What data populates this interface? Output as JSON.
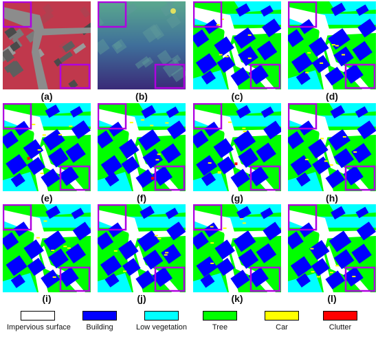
{
  "panels": [
    {
      "label": "(a)",
      "kind": "ortho"
    },
    {
      "label": "(b)",
      "kind": "dsm"
    },
    {
      "label": "(c)",
      "kind": "seg",
      "variant": 0
    },
    {
      "label": "(d)",
      "kind": "seg",
      "variant": 1
    },
    {
      "label": "(e)",
      "kind": "seg",
      "variant": 2
    },
    {
      "label": "(f)",
      "kind": "seg",
      "variant": 3
    },
    {
      "label": "(g)",
      "kind": "seg",
      "variant": 4
    },
    {
      "label": "(h)",
      "kind": "seg",
      "variant": 5
    },
    {
      "label": "(i)",
      "kind": "seg",
      "variant": 6
    },
    {
      "label": "(j)",
      "kind": "seg",
      "variant": 7
    },
    {
      "label": "(k)",
      "kind": "seg",
      "variant": 8
    },
    {
      "label": "(l)",
      "kind": "seg",
      "variant": 9
    }
  ],
  "legend": [
    {
      "label": "Impervious surface",
      "color": "#ffffff"
    },
    {
      "label": "Building",
      "color": "#0000ff"
    },
    {
      "label": "Low vegetation",
      "color": "#00ffff"
    },
    {
      "label": "Tree",
      "color": "#00ff00"
    },
    {
      "label": "Car",
      "color": "#ffff00"
    },
    {
      "label": "Clutter",
      "color": "#ff0000"
    }
  ],
  "colors": {
    "highlight_box": "#b000e0",
    "impervious": "#ffffff",
    "building": "#0000ff",
    "low_vegetation": "#00ffff",
    "tree": "#00ff00",
    "car": "#ffff00",
    "clutter": "#ff0000"
  }
}
